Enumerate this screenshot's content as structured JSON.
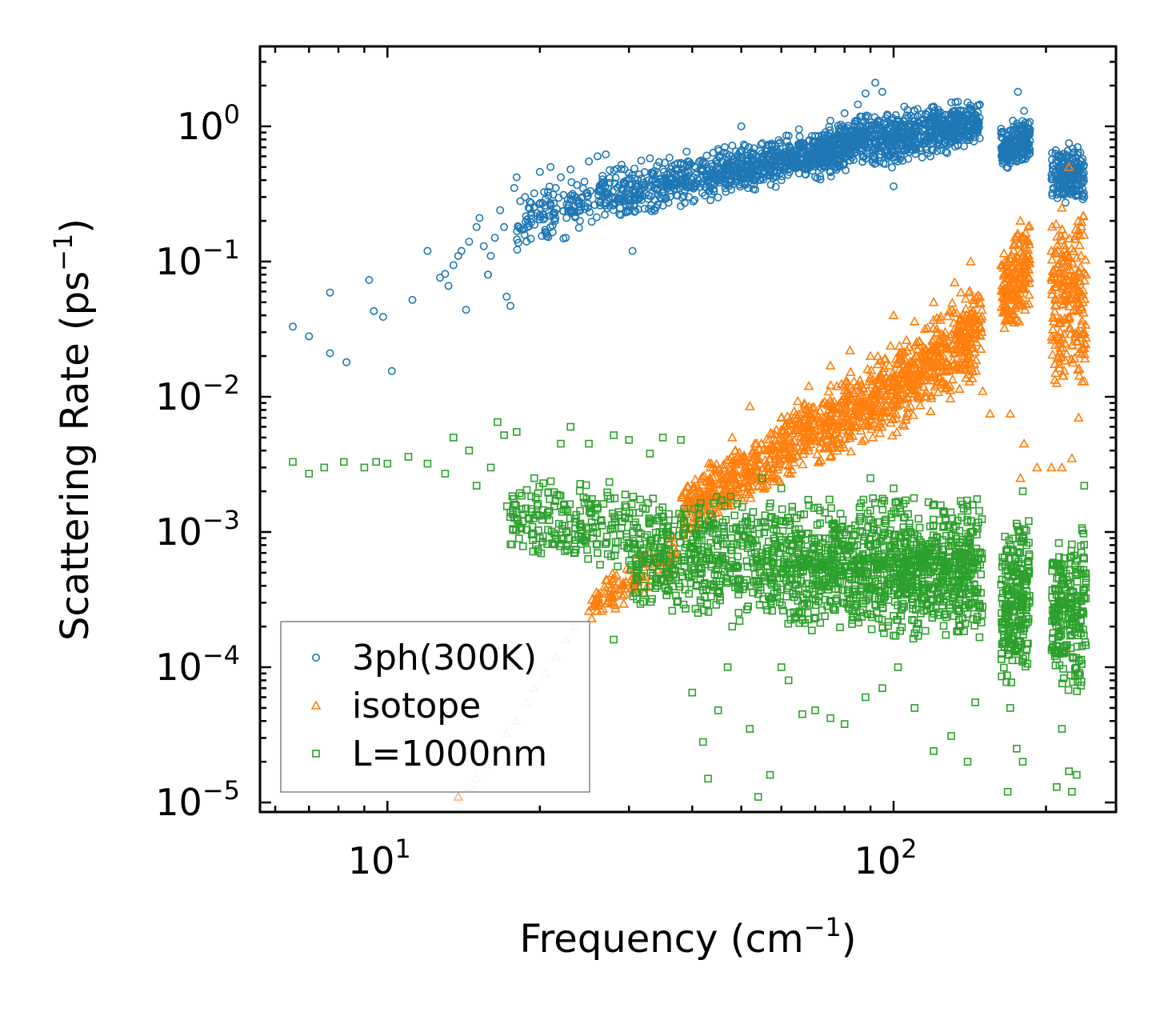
{
  "chart_data": {
    "type": "scatter",
    "xscale": "log",
    "yscale": "log",
    "xlim": [
      5.6,
      275
    ],
    "ylim": [
      8.5e-06,
      3.9
    ],
    "xlabel": {
      "text": "Frequency (cm",
      "sup": "−1",
      "close": ")"
    },
    "ylabel": {
      "text": "Scattering Rate (ps",
      "sup": "−1",
      "close": ")"
    },
    "x_ticks": [
      {
        "value": 10,
        "base": "10",
        "exp": "1"
      },
      {
        "value": 100,
        "base": "10",
        "exp": "2"
      }
    ],
    "y_ticks": [
      {
        "value": 1,
        "base": "10",
        "exp": "0"
      },
      {
        "value": 0.1,
        "base": "10",
        "exp": "−1"
      },
      {
        "value": 0.01,
        "base": "10",
        "exp": "−2"
      },
      {
        "value": 0.001,
        "base": "10",
        "exp": "−3"
      },
      {
        "value": 0.0001,
        "base": "10",
        "exp": "−4"
      },
      {
        "value": 1e-05,
        "base": "10",
        "exp": "−5"
      }
    ],
    "legend_position": "lower-left",
    "series": [
      {
        "name": "3ph(300K)",
        "marker": "circle",
        "color": "#1f77b4",
        "points": [
          [
            6.5,
            0.033
          ],
          [
            7.0,
            0.028
          ],
          [
            7.7,
            0.059
          ],
          [
            7.7,
            0.021
          ],
          [
            8.3,
            0.018
          ],
          [
            9.2,
            0.073
          ],
          [
            9.4,
            0.043
          ],
          [
            9.8,
            0.039
          ],
          [
            10.2,
            0.0155
          ],
          [
            11.2,
            0.052
          ],
          [
            12.0,
            0.12
          ],
          [
            12.7,
            0.076
          ],
          [
            13.0,
            0.081
          ],
          [
            13.2,
            0.066
          ],
          [
            13.5,
            0.094
          ],
          [
            13.8,
            0.11
          ],
          [
            14.0,
            0.12
          ],
          [
            14.3,
            0.044
          ],
          [
            14.5,
            0.14
          ],
          [
            15.0,
            0.18
          ],
          [
            15.2,
            0.21
          ],
          [
            15.5,
            0.13
          ],
          [
            15.8,
            0.08
          ],
          [
            16.0,
            0.11
          ],
          [
            16.3,
            0.15
          ],
          [
            16.7,
            0.24
          ],
          [
            17.0,
            0.18
          ],
          [
            17.2,
            0.055
          ],
          [
            17.5,
            0.047
          ],
          [
            17.8,
            0.35
          ],
          [
            18.0,
            0.42
          ],
          [
            18.3,
            0.28
          ],
          [
            18.7,
            0.3
          ],
          [
            19.2,
            0.22
          ],
          [
            19.5,
            0.32
          ],
          [
            20.0,
            0.46
          ],
          [
            20.5,
            0.26
          ],
          [
            21.0,
            0.5
          ],
          [
            21.5,
            0.35
          ],
          [
            22.0,
            0.42
          ],
          [
            22.5,
            0.15
          ],
          [
            23.0,
            0.48
          ],
          [
            24.0,
            0.2
          ],
          [
            24.5,
            0.39
          ],
          [
            25.0,
            0.55
          ],
          [
            26.0,
            0.6
          ],
          [
            27.0,
            0.62
          ],
          [
            28.0,
            0.27
          ],
          [
            29.0,
            0.52
          ],
          [
            30.0,
            0.45
          ],
          [
            30.5,
            0.12
          ],
          [
            31.0,
            0.3
          ],
          [
            33.0,
            0.58
          ],
          [
            35.0,
            0.48
          ],
          [
            37.0,
            0.52
          ],
          [
            39.0,
            0.65
          ],
          [
            42.0,
            0.55
          ],
          [
            45.0,
            0.68
          ],
          [
            48.0,
            0.72
          ],
          [
            50.0,
            1.0
          ],
          [
            52.0,
            0.42
          ],
          [
            55.0,
            0.75
          ],
          [
            58.0,
            0.6
          ],
          [
            62.0,
            0.85
          ],
          [
            65.0,
            0.95
          ],
          [
            70.0,
            0.85
          ],
          [
            75.0,
            1.1
          ],
          [
            80.0,
            1.25
          ],
          [
            85.0,
            1.45
          ],
          [
            88.0,
            1.75
          ],
          [
            92.0,
            2.1
          ],
          [
            95.0,
            1.8
          ],
          [
            100.0,
            0.36
          ],
          [
            105.0,
            1.4
          ],
          [
            110.0,
            1.3
          ],
          [
            120.0,
            1.4
          ],
          [
            130.0,
            1.5
          ],
          [
            140.0,
            1.5
          ],
          [
            148.0,
            1.45
          ],
          [
            168.0,
            0.65
          ],
          [
            172.0,
            1.1
          ],
          [
            176.0,
            1.8
          ],
          [
            181.0,
            1.3
          ],
          [
            186.0,
            0.95
          ],
          [
            208.0,
            0.45
          ],
          [
            215.0,
            0.6
          ],
          [
            222.0,
            0.75
          ],
          [
            230.0,
            0.45
          ],
          [
            238.0,
            0.3
          ]
        ],
        "bands": [
          {
            "x": [
              18,
              26
            ],
            "ylo": [
              0.1,
              0.18
            ],
            "yhi": [
              0.3,
              0.5
            ],
            "n": 120
          },
          {
            "x": [
              26,
              45
            ],
            "ylo": [
              0.18,
              0.28
            ],
            "yhi": [
              0.5,
              0.7
            ],
            "n": 340
          },
          {
            "x": [
              45,
              70
            ],
            "ylo": [
              0.3,
              0.4
            ],
            "yhi": [
              0.7,
              0.95
            ],
            "n": 400
          },
          {
            "x": [
              70,
              90
            ],
            "ylo": [
              0.38,
              0.55
            ],
            "yhi": [
              0.9,
              1.4
            ],
            "n": 360
          },
          {
            "x": [
              90,
              148
            ],
            "ylo": [
              0.45,
              0.7
            ],
            "yhi": [
              1.3,
              1.6
            ],
            "n": 560
          },
          {
            "x": [
              163,
              186
            ],
            "ylo": [
              0.45,
              0.55
            ],
            "yhi": [
              1.0,
              1.2
            ],
            "n": 200
          },
          {
            "x": [
              205,
              238
            ],
            "ylo": [
              0.28,
              0.26
            ],
            "yhi": [
              0.7,
              0.75
            ],
            "n": 200
          }
        ]
      },
      {
        "name": "isotope",
        "marker": "triangle",
        "color": "#ff7f0e",
        "faded_color": "#ffb27a",
        "faded_below_x": 25,
        "points": [
          [
            13.8,
            1.1e-05
          ],
          [
            14.5,
            1.3e-05
          ],
          [
            15.0,
            1.5e-05
          ],
          [
            15.8,
            1.9e-05
          ],
          [
            16.5,
            2.5e-05
          ],
          [
            17.2,
            3.2e-05
          ],
          [
            18.0,
            4e-05
          ],
          [
            18.8,
            5.5e-05
          ],
          [
            19.5,
            7e-05
          ],
          [
            20.5,
            9e-05
          ],
          [
            21.5,
            0.00012
          ],
          [
            22.5,
            0.00016
          ],
          [
            23.5,
            0.0002
          ],
          [
            25.0,
            0.00026
          ],
          [
            27.0,
            0.00035
          ],
          [
            29.0,
            0.0004
          ],
          [
            32.0,
            0.00055
          ],
          [
            36.0,
            0.0009
          ],
          [
            40.0,
            0.0015
          ],
          [
            44.0,
            0.003
          ],
          [
            48.0,
            0.005
          ],
          [
            52.0,
            0.0085
          ],
          [
            56.0,
            0.004
          ],
          [
            60.0,
            0.007
          ],
          [
            68.0,
            0.012
          ],
          [
            75.0,
            0.017
          ],
          [
            82.0,
            0.022
          ],
          [
            90.0,
            0.02
          ],
          [
            100.0,
            0.04
          ],
          [
            110.0,
            0.036
          ],
          [
            120.0,
            0.05
          ],
          [
            132.0,
            0.07
          ],
          [
            142.0,
            0.1
          ],
          [
            150.0,
            0.011
          ],
          [
            165.0,
            0.09
          ],
          [
            178.0,
            0.2
          ],
          [
            185.0,
            0.1
          ],
          [
            205.0,
            0.12
          ],
          [
            215.0,
            0.25
          ],
          [
            222.0,
            0.5
          ],
          [
            230.0,
            0.16
          ],
          [
            240.0,
            0.08
          ],
          [
            178.0,
            0.0025
          ],
          [
            181.0,
            0.0045
          ],
          [
            192.0,
            0.003
          ],
          [
            205.0,
            0.003
          ],
          [
            215.0,
            0.003
          ],
          [
            225.0,
            0.0035
          ],
          [
            232.0,
            0.007
          ],
          [
            170.0,
            0.0075
          ],
          [
            155.0,
            0.0075
          ],
          [
            238.0,
            0.013
          ]
        ],
        "bands": [
          {
            "x": [
              25,
              38
            ],
            "ylo": [
              0.0002,
              0.00045
            ],
            "yhi": [
              0.0004,
              0.0012
            ],
            "n": 120
          },
          {
            "x": [
              38,
              60
            ],
            "ylo": [
              0.0008,
              0.0022
            ],
            "yhi": [
              0.0025,
              0.007
            ],
            "n": 320
          },
          {
            "x": [
              60,
              100
            ],
            "ylo": [
              0.0022,
              0.005
            ],
            "yhi": [
              0.008,
              0.025
            ],
            "n": 420
          },
          {
            "x": [
              100,
              150
            ],
            "ylo": [
              0.005,
              0.014
            ],
            "yhi": [
              0.025,
              0.08
            ],
            "n": 420
          },
          {
            "x": [
              163,
              186
            ],
            "ylo": [
              0.025,
              0.035
            ],
            "yhi": [
              0.12,
              0.25
            ],
            "n": 180
          },
          {
            "x": [
              205,
              240
            ],
            "ylo": [
              0.012,
              0.01
            ],
            "yhi": [
              0.2,
              0.3
            ],
            "n": 220
          }
        ]
      },
      {
        "name": "L=1000nm",
        "marker": "square",
        "color": "#2ca02c",
        "points": [
          [
            6.5,
            0.0033
          ],
          [
            7.0,
            0.0027
          ],
          [
            7.5,
            0.003
          ],
          [
            8.2,
            0.0033
          ],
          [
            9.0,
            0.003
          ],
          [
            9.5,
            0.0033
          ],
          [
            10.0,
            0.0032
          ],
          [
            11.0,
            0.0036
          ],
          [
            12.0,
            0.0032
          ],
          [
            13.0,
            0.0027
          ],
          [
            13.5,
            0.005
          ],
          [
            14.5,
            0.004
          ],
          [
            15.0,
            0.0022
          ],
          [
            16.0,
            0.003
          ],
          [
            16.5,
            0.0065
          ],
          [
            17.0,
            0.0052
          ],
          [
            18.0,
            0.0055
          ],
          [
            18.0,
            0.0014
          ],
          [
            19.5,
            0.0025
          ],
          [
            20.0,
            0.0009
          ],
          [
            22.0,
            0.0045
          ],
          [
            23.0,
            0.006
          ],
          [
            25.0,
            0.0045
          ],
          [
            26.0,
            0.0007
          ],
          [
            28.0,
            0.0052
          ],
          [
            30.0,
            0.0048
          ],
          [
            33.0,
            0.0038
          ],
          [
            35.0,
            0.005
          ],
          [
            38.0,
            0.0048
          ],
          [
            28.0,
            0.00016
          ],
          [
            40.0,
            6.5e-05
          ],
          [
            42.0,
            2.8e-05
          ],
          [
            43.0,
            1.5e-05
          ],
          [
            45.0,
            4.8e-05
          ],
          [
            47.0,
            0.0001
          ],
          [
            48.0,
            0.0002
          ],
          [
            52.0,
            3.5e-05
          ],
          [
            54.0,
            1.1e-05
          ],
          [
            57.0,
            1.6e-05
          ],
          [
            60.0,
            0.0001
          ],
          [
            62.0,
            8e-05
          ],
          [
            66.0,
            4.5e-05
          ],
          [
            70.0,
            4.8e-05
          ],
          [
            75.0,
            4.2e-05
          ],
          [
            80.0,
            3.8e-05
          ],
          [
            88.0,
            6e-05
          ],
          [
            95.0,
            7e-05
          ],
          [
            102.0,
            0.0001
          ],
          [
            110.0,
            5e-05
          ],
          [
            120.0,
            2.4e-05
          ],
          [
            130.0,
            3.1e-05
          ],
          [
            140.0,
            2e-05
          ],
          [
            145.0,
            5.5e-05
          ],
          [
            168.0,
            1.2e-05
          ],
          [
            170.0,
            5e-05
          ],
          [
            175.0,
            2.5e-05
          ],
          [
            180.0,
            2e-05
          ],
          [
            210.0,
            1.3e-05
          ],
          [
            215.0,
            3.5e-05
          ],
          [
            222.0,
            1.7e-05
          ],
          [
            230.0,
            1.6e-05
          ],
          [
            225.0,
            1.2e-05
          ],
          [
            235.0,
            7.8e-05
          ],
          [
            180.0,
            0.002
          ],
          [
            238.0,
            0.0022
          ],
          [
            55.0,
            0.0025
          ],
          [
            60.0,
            0.0021
          ],
          [
            90.0,
            0.0025
          ],
          [
            100.0,
            0.0021
          ]
        ],
        "bands": [
          {
            "x": [
              17,
              30
            ],
            "ylo": [
              0.0007,
              0.0005
            ],
            "yhi": [
              0.0025,
              0.0025
            ],
            "n": 200
          },
          {
            "x": [
              30,
              60
            ],
            "ylo": [
              0.00025,
              0.0002
            ],
            "yhi": [
              0.0022,
              0.002
            ],
            "n": 500
          },
          {
            "x": [
              60,
              100
            ],
            "ylo": [
              0.00018,
              0.00015
            ],
            "yhi": [
              0.002,
              0.002
            ],
            "n": 560
          },
          {
            "x": [
              100,
              150
            ],
            "ylo": [
              0.00015,
              0.00014
            ],
            "yhi": [
              0.002,
              0.002
            ],
            "n": 560
          },
          {
            "x": [
              163,
              186
            ],
            "ylo": [
              6e-05,
              8e-05
            ],
            "yhi": [
              0.0012,
              0.0015
            ],
            "n": 240
          },
          {
            "x": [
              205,
              240
            ],
            "ylo": [
              6e-05,
              6e-05
            ],
            "yhi": [
              0.0009,
              0.0015
            ],
            "n": 240
          }
        ]
      }
    ],
    "legend": [
      {
        "name": "3ph(300K)",
        "marker": "circle",
        "color": "#1f77b4"
      },
      {
        "name": "isotope",
        "marker": "triangle",
        "color": "#ff7f0e"
      },
      {
        "name": "L=1000nm",
        "marker": "square",
        "color": "#2ca02c"
      }
    ]
  }
}
